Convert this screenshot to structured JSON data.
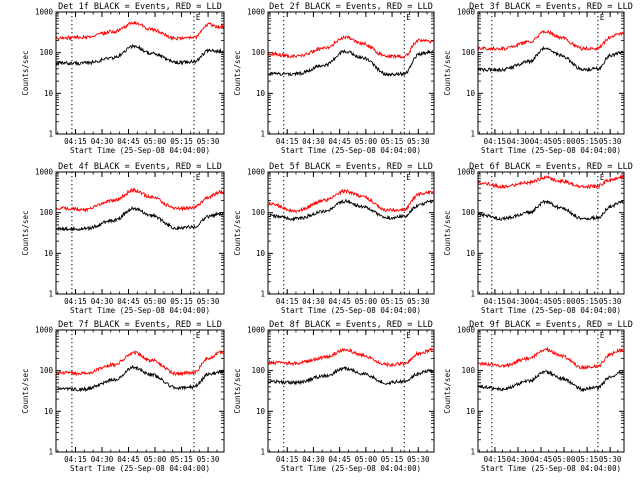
{
  "colors": {
    "events": "#000000",
    "lld": "#ff0000",
    "frame": "#000000"
  },
  "chart_data": [
    {
      "type": "line",
      "title": "Det 1f BLACK = Events, RED = LLD",
      "xlabel": "Start Time (25-Sep-08 04:04:00)",
      "ylabel": "Counts/sec",
      "yscale": "log",
      "ylim": [
        1,
        1000
      ],
      "xlim": [
        "04:04",
        "05:39"
      ],
      "xticks": [
        "04:15",
        "04:30",
        "04:45",
        "05:00",
        "05:15",
        "05:30"
      ],
      "yticks": [
        "1",
        "10",
        "100",
        "1000"
      ],
      "markers": [
        {
          "time": "04:13",
          "label": ""
        },
        {
          "time": "05:22",
          "label": "E"
        }
      ],
      "series": [
        {
          "name": "Events",
          "color": "black",
          "x": [
            "04:04",
            "04:20",
            "04:37",
            "04:48",
            "04:58",
            "05:12",
            "05:22",
            "05:30",
            "05:37"
          ],
          "values": [
            55,
            55,
            75,
            145,
            95,
            58,
            60,
            110,
            110
          ]
        },
        {
          "name": "LLD",
          "color": "red",
          "x": [
            "04:04",
            "04:20",
            "04:37",
            "04:48",
            "04:58",
            "05:12",
            "05:22",
            "05:30",
            "05:37"
          ],
          "values": [
            230,
            240,
            330,
            540,
            370,
            220,
            230,
            500,
            430
          ]
        }
      ]
    },
    {
      "type": "line",
      "title": "Det 2f BLACK = Events, RED = LLD",
      "xlabel": "Start Time (25-Sep-08 04:04:00)",
      "ylabel": "Counts/sec",
      "yscale": "log",
      "ylim": [
        1,
        1000
      ],
      "xlim": [
        "04:04",
        "05:39"
      ],
      "xticks": [
        "04:15",
        "04:30",
        "04:45",
        "05:00",
        "05:15",
        "05:30"
      ],
      "yticks": [
        "1",
        "10",
        "100",
        "1000"
      ],
      "markers": [
        {
          "time": "04:13",
          "label": ""
        },
        {
          "time": "05:22",
          "label": "E"
        }
      ],
      "series": [
        {
          "name": "Events",
          "color": "black",
          "x": [
            "04:04",
            "04:20",
            "04:37",
            "04:48",
            "04:58",
            "05:12",
            "05:22",
            "05:30",
            "05:37"
          ],
          "values": [
            30,
            30,
            50,
            110,
            75,
            30,
            30,
            90,
            105
          ]
        },
        {
          "name": "LLD",
          "color": "red",
          "x": [
            "04:04",
            "04:20",
            "04:37",
            "04:48",
            "04:58",
            "05:12",
            "05:22",
            "05:30",
            "05:37"
          ],
          "values": [
            95,
            80,
            130,
            240,
            170,
            80,
            80,
            200,
            190
          ]
        }
      ]
    },
    {
      "type": "line",
      "title": "Det 3f BLACK = Events, RED = LLD",
      "xlabel": "Start Time (25-Sep-08 04:04:00)",
      "ylabel": "Counts/sec",
      "yscale": "log",
      "ylim": [
        1,
        1000
      ],
      "xlim": [
        "04:04",
        "05:39"
      ],
      "xticks": [
        "04:15",
        "04:30",
        "04:45",
        "05:00",
        "05:15",
        "05:30"
      ],
      "yticks": [
        "1",
        "10",
        "100",
        "1000"
      ],
      "markers": [
        {
          "time": "04:13",
          "label": ""
        },
        {
          "time": "05:22",
          "label": "E"
        }
      ],
      "series": [
        {
          "name": "Events",
          "color": "black",
          "x": [
            "04:04",
            "04:20",
            "04:37",
            "04:48",
            "04:58",
            "05:12",
            "05:22",
            "05:30",
            "05:37"
          ],
          "values": [
            38,
            38,
            60,
            130,
            85,
            38,
            40,
            85,
            100
          ]
        },
        {
          "name": "LLD",
          "color": "red",
          "x": [
            "04:04",
            "04:20",
            "04:37",
            "04:48",
            "04:58",
            "05:12",
            "05:22",
            "05:30",
            "05:37"
          ],
          "values": [
            130,
            125,
            180,
            330,
            230,
            125,
            130,
            240,
            290
          ]
        }
      ]
    },
    {
      "type": "line",
      "title": "Det 4f BLACK = Events, RED = LLD",
      "xlabel": "Start Time (25-Sep-08 04:04:00)",
      "ylabel": "Counts/sec",
      "yscale": "log",
      "ylim": [
        1,
        1000
      ],
      "xlim": [
        "04:04",
        "05:39"
      ],
      "xticks": [
        "04:15",
        "04:30",
        "04:45",
        "05:00",
        "05:15",
        "05:30"
      ],
      "yticks": [
        "1",
        "10",
        "100",
        "1000"
      ],
      "markers": [
        {
          "time": "04:13",
          "label": ""
        },
        {
          "time": "05:22",
          "label": "E"
        }
      ],
      "series": [
        {
          "name": "Events",
          "color": "black",
          "x": [
            "04:04",
            "04:20",
            "04:37",
            "04:48",
            "04:58",
            "05:12",
            "05:22",
            "05:30",
            "05:37"
          ],
          "values": [
            40,
            40,
            65,
            130,
            85,
            42,
            45,
            80,
            95
          ]
        },
        {
          "name": "LLD",
          "color": "red",
          "x": [
            "04:04",
            "04:20",
            "04:37",
            "04:48",
            "04:58",
            "05:12",
            "05:22",
            "05:30",
            "05:37"
          ],
          "values": [
            130,
            120,
            200,
            360,
            240,
            125,
            130,
            240,
            320
          ]
        }
      ]
    },
    {
      "type": "line",
      "title": "Det 5f BLACK = Events, RED = LLD",
      "xlabel": "Start Time (25-Sep-08 04:04:00)",
      "ylabel": "Counts/sec",
      "yscale": "log",
      "ylim": [
        1,
        1000
      ],
      "xlim": [
        "04:04",
        "05:39"
      ],
      "xticks": [
        "04:15",
        "04:30",
        "04:45",
        "05:00",
        "05:15",
        "05:30"
      ],
      "yticks": [
        "1",
        "10",
        "100",
        "1000"
      ],
      "markers": [
        {
          "time": "04:13",
          "label": ""
        },
        {
          "time": "05:22",
          "label": "E"
        }
      ],
      "series": [
        {
          "name": "Events",
          "color": "black",
          "x": [
            "04:04",
            "04:20",
            "04:37",
            "04:48",
            "04:58",
            "05:12",
            "05:22",
            "05:30",
            "05:37"
          ],
          "values": [
            85,
            70,
            110,
            190,
            140,
            75,
            80,
            150,
            190
          ]
        },
        {
          "name": "LLD",
          "color": "red",
          "x": [
            "04:04",
            "04:20",
            "04:37",
            "04:48",
            "04:58",
            "05:12",
            "05:22",
            "05:30",
            "05:37"
          ],
          "values": [
            170,
            110,
            200,
            340,
            250,
            115,
            120,
            280,
            330
          ]
        }
      ]
    },
    {
      "type": "line",
      "title": "Det 6f BLACK = Events, RED = LLD",
      "xlabel": "Start Time (25-Sep-08 04:04:00)",
      "ylabel": "Counts/sec",
      "yscale": "log",
      "ylim": [
        1,
        1000
      ],
      "xlim": [
        "04:04",
        "05:39"
      ],
      "xticks": [
        "04:15",
        "04:30",
        "04:45",
        "05:00",
        "05:15",
        "05:30"
      ],
      "yticks": [
        "1",
        "10",
        "100",
        "1000"
      ],
      "markers": [
        {
          "time": "04:13",
          "label": ""
        },
        {
          "time": "05:22",
          "label": "E"
        }
      ],
      "series": [
        {
          "name": "Events",
          "color": "black",
          "x": [
            "04:04",
            "04:20",
            "04:37",
            "04:48",
            "04:58",
            "05:12",
            "05:22",
            "05:30",
            "05:37"
          ],
          "values": [
            90,
            70,
            100,
            190,
            130,
            70,
            75,
            140,
            180
          ]
        },
        {
          "name": "LLD",
          "color": "red",
          "x": [
            "04:04",
            "04:20",
            "04:37",
            "04:48",
            "04:58",
            "05:12",
            "05:22",
            "05:30",
            "05:37"
          ],
          "values": [
            560,
            430,
            550,
            730,
            600,
            430,
            450,
            650,
            750
          ]
        }
      ]
    },
    {
      "type": "line",
      "title": "Det 7f BLACK = Events, RED = LLD",
      "xlabel": "Start Time (25-Sep-08 04:04:00)",
      "ylabel": "Counts/sec",
      "yscale": "log",
      "ylim": [
        1,
        1000
      ],
      "xlim": [
        "04:04",
        "05:39"
      ],
      "xticks": [
        "04:15",
        "04:30",
        "04:45",
        "05:00",
        "05:15",
        "05:30"
      ],
      "yticks": [
        "1",
        "10",
        "100",
        "1000"
      ],
      "markers": [
        {
          "time": "04:13",
          "label": ""
        },
        {
          "time": "05:22",
          "label": "E"
        }
      ],
      "series": [
        {
          "name": "Events",
          "color": "black",
          "x": [
            "04:04",
            "04:20",
            "04:37",
            "04:48",
            "04:58",
            "05:12",
            "05:22",
            "05:30",
            "05:37"
          ],
          "values": [
            35,
            35,
            60,
            120,
            80,
            38,
            40,
            80,
            95
          ]
        },
        {
          "name": "LLD",
          "color": "red",
          "x": [
            "04:04",
            "04:20",
            "04:37",
            "04:48",
            "04:58",
            "05:12",
            "05:22",
            "05:30",
            "05:37"
          ],
          "values": [
            90,
            85,
            140,
            280,
            180,
            85,
            90,
            200,
            280
          ]
        }
      ]
    },
    {
      "type": "line",
      "title": "Det 8f BLACK = Events, RED = LLD",
      "xlabel": "Start Time (25-Sep-08 04:04:00)",
      "ylabel": "Counts/sec",
      "yscale": "log",
      "ylim": [
        1,
        1000
      ],
      "xlim": [
        "04:04",
        "05:39"
      ],
      "xticks": [
        "04:15",
        "04:30",
        "04:45",
        "05:00",
        "05:15",
        "05:30"
      ],
      "yticks": [
        "1",
        "10",
        "100",
        "1000"
      ],
      "markers": [
        {
          "time": "04:13",
          "label": ""
        },
        {
          "time": "05:22",
          "label": "E"
        }
      ],
      "series": [
        {
          "name": "Events",
          "color": "black",
          "x": [
            "04:04",
            "04:20",
            "04:37",
            "04:48",
            "04:58",
            "05:12",
            "05:22",
            "05:30",
            "05:37"
          ],
          "values": [
            55,
            50,
            75,
            115,
            85,
            50,
            55,
            85,
            100
          ]
        },
        {
          "name": "LLD",
          "color": "red",
          "x": [
            "04:04",
            "04:20",
            "04:37",
            "04:48",
            "04:58",
            "05:12",
            "05:22",
            "05:30",
            "05:37"
          ],
          "values": [
            160,
            150,
            210,
            330,
            240,
            140,
            150,
            260,
            320
          ]
        }
      ]
    },
    {
      "type": "line",
      "title": "Det 9f BLACK = Events, RED = LLD",
      "xlabel": "Start Time (25-Sep-08 04:04:00)",
      "ylabel": "Counts/sec",
      "yscale": "log",
      "ylim": [
        1,
        1000
      ],
      "xlim": [
        "04:04",
        "05:39"
      ],
      "xticks": [
        "04:15",
        "04:30",
        "04:45",
        "05:00",
        "05:15",
        "05:30"
      ],
      "yticks": [
        "1",
        "10",
        "100",
        "1000"
      ],
      "markers": [
        {
          "time": "04:13",
          "label": ""
        },
        {
          "time": "05:22",
          "label": "E"
        }
      ],
      "series": [
        {
          "name": "Events",
          "color": "black",
          "x": [
            "04:04",
            "04:20",
            "04:37",
            "04:48",
            "04:58",
            "05:12",
            "05:22",
            "05:30",
            "05:37"
          ],
          "values": [
            40,
            35,
            55,
            95,
            65,
            35,
            38,
            70,
            90
          ]
        },
        {
          "name": "LLD",
          "color": "red",
          "x": [
            "04:04",
            "04:20",
            "04:37",
            "04:48",
            "04:58",
            "05:12",
            "05:22",
            "05:30",
            "05:37"
          ],
          "values": [
            150,
            130,
            200,
            330,
            230,
            120,
            130,
            250,
            320
          ]
        }
      ]
    }
  ]
}
